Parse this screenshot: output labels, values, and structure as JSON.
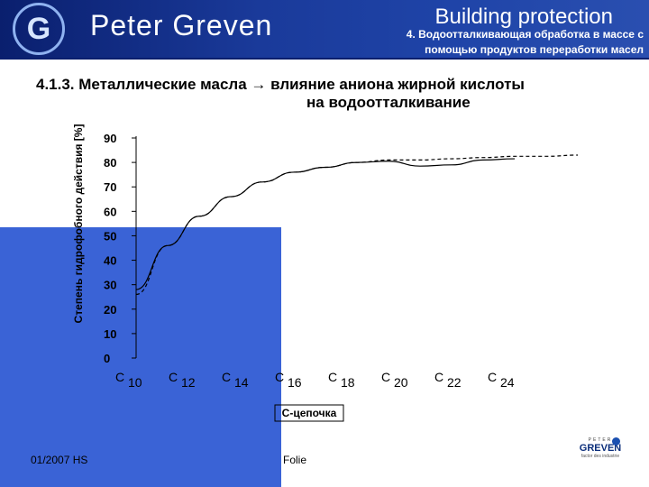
{
  "header": {
    "brand": "Peter Greven",
    "section": "Building protection",
    "subtitle": "4. Водоотталкивающая обработка в массе с помощью продуктов переработки масел"
  },
  "title_line1": "4.1.3. Металлические масла → влияние аниона жирной кислоты",
  "title_line2": "на водоотталкивание",
  "chart_data": {
    "type": "line",
    "ylabel": "Степень гидрофобного действия [%]",
    "xlabel": "С-цепочка",
    "ylim": [
      0,
      90
    ],
    "yticks": [
      0,
      10,
      20,
      30,
      40,
      50,
      60,
      70,
      80,
      90
    ],
    "categories": [
      "C 10",
      "C 12",
      "C 14",
      "C 16",
      "C 18",
      "C 20",
      "C 22",
      "C 24"
    ],
    "series": [
      {
        "style": "dashed",
        "x": [
          10,
          11,
          12,
          13,
          14,
          15,
          16,
          17,
          18,
          19,
          20,
          21,
          22,
          23,
          24
        ],
        "values": [
          26,
          46,
          58,
          66,
          72,
          76,
          78,
          80,
          81,
          81,
          81.5,
          82,
          82.5,
          82.5,
          83
        ]
      },
      {
        "style": "solid",
        "x": [
          10,
          11,
          12,
          13,
          14,
          15,
          16,
          17,
          18,
          19,
          20,
          21,
          22
        ],
        "values": [
          28,
          46,
          58,
          66,
          72,
          76,
          78,
          80,
          80.5,
          78.5,
          79,
          81,
          81.5
        ]
      }
    ]
  },
  "footer": {
    "date": "01/2007   HS",
    "folie": "Folie",
    "logo_small": "PETER",
    "logo_big": "GREVEN",
    "logo_tag": "factor des industrie"
  }
}
